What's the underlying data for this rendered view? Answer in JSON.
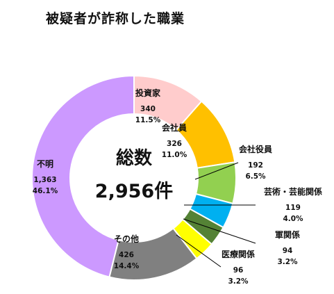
{
  "chart_data": {
    "type": "pie",
    "variant": "donut",
    "title": "被疑者が詐称した職業",
    "center_label": {
      "title": "総数",
      "total": "2,956件"
    },
    "slices": [
      {
        "label": "投資家",
        "value": 340,
        "value_text": "340",
        "percent": "11.5%",
        "color": "#FFCCCC"
      },
      {
        "label": "会社員",
        "value": 326,
        "value_text": "326",
        "percent": "11.0%",
        "color": "#FFC000"
      },
      {
        "label": "会社役員",
        "value": 192,
        "value_text": "192",
        "percent": "6.5%",
        "color": "#92D050"
      },
      {
        "label": "芸術・芸能関係",
        "value": 119,
        "value_text": "119",
        "percent": "4.0%",
        "color": "#00B0F0"
      },
      {
        "label": "軍関係",
        "value": 94,
        "value_text": "94",
        "percent": "3.2%",
        "color": "#548235"
      },
      {
        "label": "医療関係",
        "value": 96,
        "value_text": "96",
        "percent": "3.2%",
        "color": "#FFFF00"
      },
      {
        "label": "その他",
        "value": 426,
        "value_text": "426",
        "percent": "14.4%",
        "color": "#808080"
      },
      {
        "label": "不明",
        "value": 1363,
        "value_text": "1,363",
        "percent": "46.1%",
        "color": "#CC99FF"
      }
    ]
  }
}
